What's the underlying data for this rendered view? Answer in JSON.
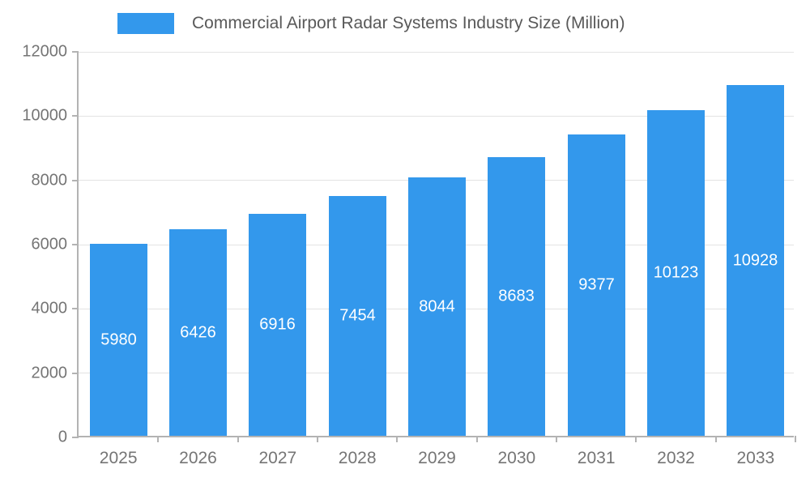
{
  "chart_data": {
    "type": "bar",
    "title": "Commercial Airport Radar Systems Industry Size (Million)",
    "categories": [
      "2025",
      "2026",
      "2027",
      "2028",
      "2029",
      "2030",
      "2031",
      "2032",
      "2033"
    ],
    "values": [
      5980,
      6426,
      6916,
      7454,
      8044,
      8683,
      9377,
      10123,
      10928
    ],
    "value_labels": [
      "5980",
      "6426",
      "6916",
      "7454",
      "8044",
      "8683",
      "9377",
      "10123",
      "10928"
    ],
    "xlabel": "",
    "ylabel": "",
    "ylim": [
      0,
      12000
    ],
    "yticks": [
      0,
      2000,
      4000,
      6000,
      8000,
      10000,
      12000
    ],
    "grid": "horizontal",
    "legend_position": "top",
    "colors": {
      "bar": "#3398EC",
      "value_label": "#ffffff",
      "axis_label": "#757575",
      "grid_line": "#e3e3e3",
      "axis_line": "#b3b3b3",
      "title": "#595959",
      "background": "#ffffff"
    }
  }
}
